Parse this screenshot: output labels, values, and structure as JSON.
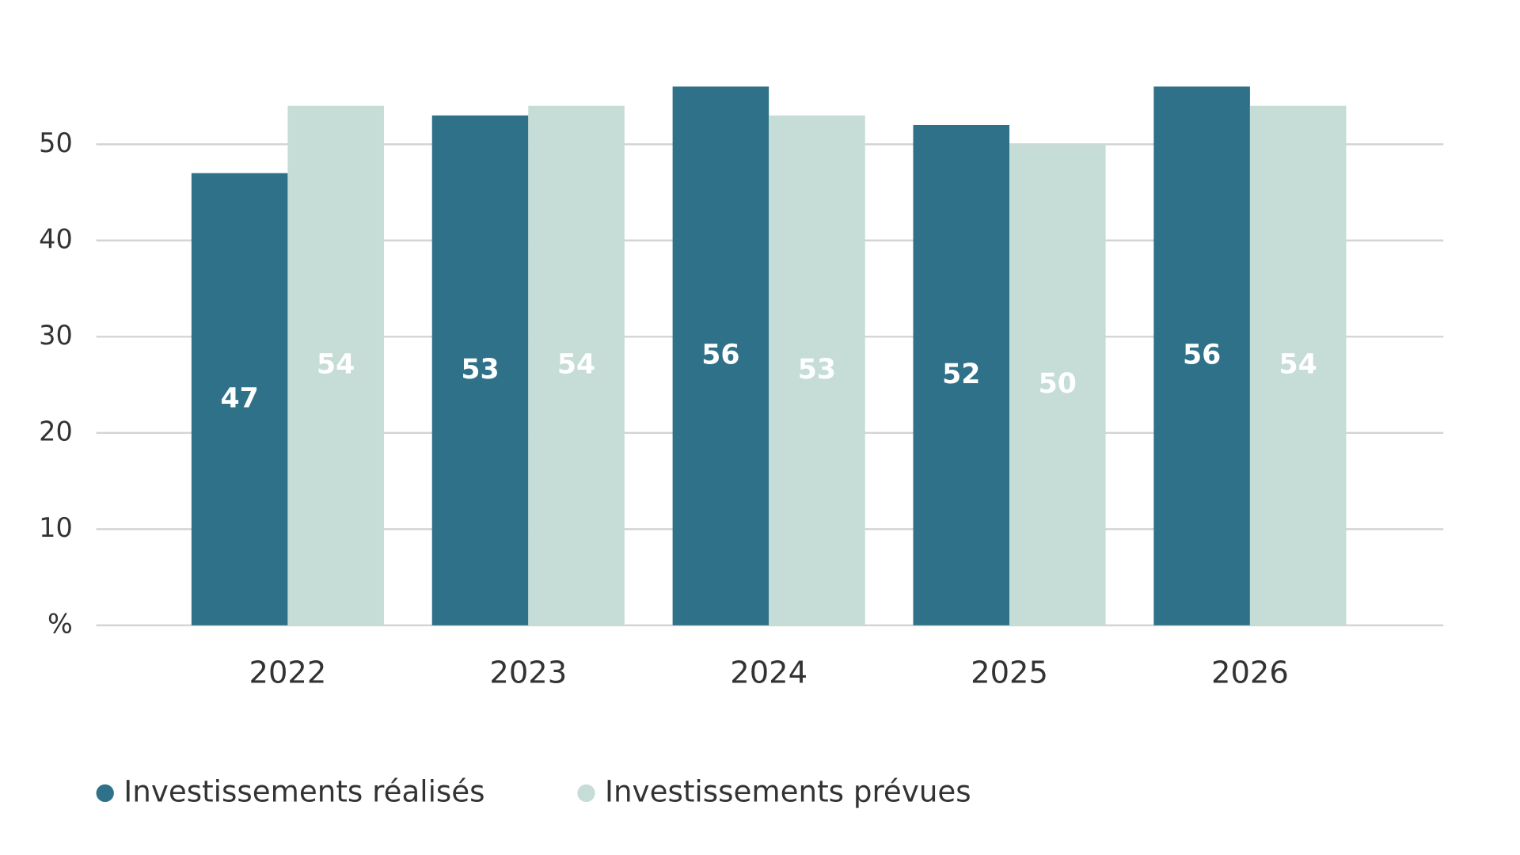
{
  "chart_data": {
    "type": "bar",
    "categories": [
      "2022",
      "2023",
      "2024",
      "2025",
      "2026"
    ],
    "series": [
      {
        "name": "Investissements réalisés",
        "color": "#2e7189",
        "values": [
          47,
          53,
          56,
          52,
          56
        ]
      },
      {
        "name": "Investissements prévues",
        "color": "#c5ddd6",
        "values": [
          54,
          54,
          53,
          50,
          54
        ]
      }
    ],
    "ylim": [
      0,
      60
    ],
    "yticks": [
      {
        "value": 0,
        "label": "%"
      },
      10,
      20,
      30,
      40,
      50
    ],
    "grid": true
  }
}
